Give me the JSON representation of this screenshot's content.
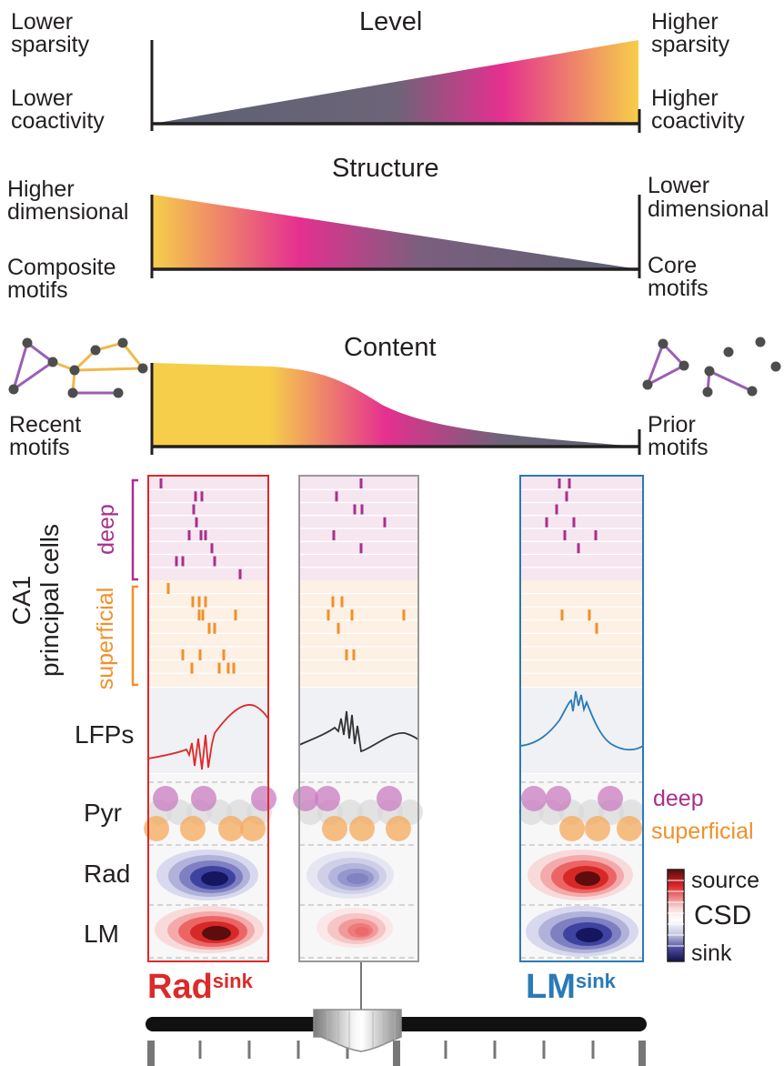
{
  "level": {
    "title": "Level",
    "left_top": [
      "Lower",
      "sparsity"
    ],
    "left_bottom": [
      "Lower",
      "coactivity"
    ],
    "right_top": [
      "Higher",
      "sparsity"
    ],
    "right_bottom": [
      "Higher",
      "coactivity"
    ]
  },
  "structure": {
    "title": "Structure",
    "left_top": [
      "Higher",
      "dimensional"
    ],
    "left_bottom": [
      "Composite",
      "motifs"
    ],
    "right_top": [
      "Lower",
      "dimensional"
    ],
    "right_bottom": [
      "Core",
      "motifs"
    ]
  },
  "content": {
    "title": "Content",
    "left": [
      "Recent",
      "motifs"
    ],
    "right": [
      "Prior",
      "motifs"
    ]
  },
  "cells": {
    "axis_line1": "CA1",
    "axis_line2": "principal cells",
    "deep": "deep",
    "superficial": "superficial"
  },
  "rows": {
    "lfp": "LFPs",
    "pyr": "Pyr",
    "rad": "Rad",
    "lm": "LM"
  },
  "legend": {
    "deep": "deep",
    "superficial": "superficial",
    "source": "source",
    "csd": "CSD",
    "sink": "sink"
  },
  "panels": {
    "left_main": "Rad",
    "left_sup": "sink",
    "right_main": "LM",
    "right_sup": "sink"
  },
  "colors": {
    "yellow": "#f6ce4a",
    "magenta": "#e5308f",
    "slate": "#5b6173",
    "deep": "#a8308c",
    "superficial": "#f0902a",
    "rad_red": "#dc2a2a",
    "lm_blue": "#2a7ab6",
    "gray": "#999999",
    "sink": "#1a1a5e",
    "source": "#6a0d0d"
  }
}
